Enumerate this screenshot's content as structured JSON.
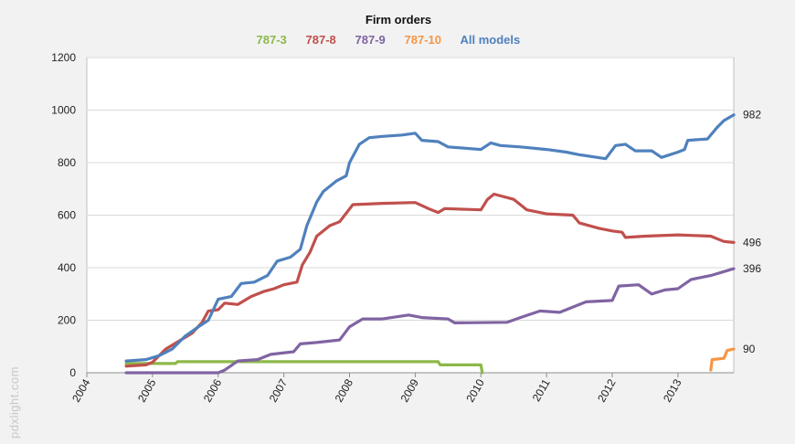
{
  "chart_data": {
    "type": "line",
    "title": "Firm orders",
    "watermark": "pdxlight.com",
    "xlabel": "",
    "ylabel": "",
    "xlim": [
      2004,
      2013.85
    ],
    "ylim": [
      0,
      1200
    ],
    "y_ticks": [
      0,
      200,
      400,
      600,
      800,
      1000,
      1200
    ],
    "x_ticks": [
      2004,
      2005,
      2006,
      2007,
      2008,
      2009,
      2010,
      2011,
      2012,
      2013
    ],
    "grid": true,
    "legend_position": "top",
    "series": [
      {
        "name": "787-3",
        "color": "#8db84a",
        "points": [
          [
            2004.6,
            35
          ],
          [
            2005.35,
            35
          ],
          [
            2005.38,
            42
          ],
          [
            2009.35,
            42
          ],
          [
            2009.38,
            30
          ],
          [
            2010.0,
            30
          ],
          [
            2010.02,
            0
          ]
        ]
      },
      {
        "name": "787-8",
        "color": "#c0504d",
        "points": [
          [
            2004.6,
            25
          ],
          [
            2004.9,
            30
          ],
          [
            2005.0,
            40
          ],
          [
            2005.2,
            90
          ],
          [
            2005.4,
            120
          ],
          [
            2005.6,
            150
          ],
          [
            2005.75,
            190
          ],
          [
            2005.85,
            235
          ],
          [
            2006.0,
            240
          ],
          [
            2006.1,
            265
          ],
          [
            2006.3,
            260
          ],
          [
            2006.5,
            290
          ],
          [
            2006.7,
            310
          ],
          [
            2006.85,
            320
          ],
          [
            2007.0,
            335
          ],
          [
            2007.2,
            345
          ],
          [
            2007.28,
            410
          ],
          [
            2007.4,
            460
          ],
          [
            2007.5,
            520
          ],
          [
            2007.7,
            560
          ],
          [
            2007.85,
            575
          ],
          [
            2008.05,
            640
          ],
          [
            2008.5,
            645
          ],
          [
            2009.0,
            648
          ],
          [
            2009.2,
            625
          ],
          [
            2009.35,
            610
          ],
          [
            2009.45,
            625
          ],
          [
            2010.0,
            620
          ],
          [
            2010.1,
            660
          ],
          [
            2010.2,
            680
          ],
          [
            2010.5,
            660
          ],
          [
            2010.7,
            620
          ],
          [
            2011.0,
            605
          ],
          [
            2011.4,
            600
          ],
          [
            2011.5,
            570
          ],
          [
            2011.8,
            550
          ],
          [
            2012.0,
            540
          ],
          [
            2012.15,
            535
          ],
          [
            2012.2,
            515
          ],
          [
            2012.5,
            520
          ],
          [
            2013.0,
            525
          ],
          [
            2013.5,
            520
          ],
          [
            2013.7,
            500
          ],
          [
            2013.85,
            496
          ]
        ]
      },
      {
        "name": "787-9",
        "color": "#8064a2",
        "points": [
          [
            2004.6,
            0
          ],
          [
            2006.0,
            0
          ],
          [
            2006.1,
            10
          ],
          [
            2006.3,
            45
          ],
          [
            2006.6,
            50
          ],
          [
            2006.8,
            70
          ],
          [
            2007.15,
            80
          ],
          [
            2007.25,
            110
          ],
          [
            2007.5,
            115
          ],
          [
            2007.85,
            125
          ],
          [
            2008.0,
            175
          ],
          [
            2008.2,
            205
          ],
          [
            2008.5,
            205
          ],
          [
            2008.9,
            220
          ],
          [
            2009.1,
            210
          ],
          [
            2009.5,
            205
          ],
          [
            2009.6,
            190
          ],
          [
            2010.4,
            192
          ],
          [
            2010.6,
            210
          ],
          [
            2010.9,
            235
          ],
          [
            2011.2,
            230
          ],
          [
            2011.6,
            270
          ],
          [
            2012.0,
            275
          ],
          [
            2012.1,
            330
          ],
          [
            2012.4,
            335
          ],
          [
            2012.6,
            300
          ],
          [
            2012.8,
            315
          ],
          [
            2013.0,
            320
          ],
          [
            2013.2,
            355
          ],
          [
            2013.5,
            370
          ],
          [
            2013.7,
            385
          ],
          [
            2013.85,
            396
          ]
        ]
      },
      {
        "name": "787-10",
        "color": "#f79646",
        "points": [
          [
            2013.5,
            10
          ],
          [
            2013.52,
            50
          ],
          [
            2013.7,
            55
          ],
          [
            2013.75,
            85
          ],
          [
            2013.85,
            90
          ]
        ]
      },
      {
        "name": "All models",
        "color": "#4f81bd",
        "points": [
          [
            2004.6,
            45
          ],
          [
            2004.9,
            50
          ],
          [
            2005.1,
            65
          ],
          [
            2005.3,
            90
          ],
          [
            2005.5,
            140
          ],
          [
            2005.7,
            175
          ],
          [
            2005.85,
            200
          ],
          [
            2006.0,
            280
          ],
          [
            2006.2,
            290
          ],
          [
            2006.35,
            340
          ],
          [
            2006.55,
            345
          ],
          [
            2006.75,
            370
          ],
          [
            2006.9,
            425
          ],
          [
            2007.1,
            440
          ],
          [
            2007.25,
            470
          ],
          [
            2007.35,
            560
          ],
          [
            2007.5,
            650
          ],
          [
            2007.6,
            690
          ],
          [
            2007.8,
            730
          ],
          [
            2007.95,
            750
          ],
          [
            2008.0,
            800
          ],
          [
            2008.15,
            870
          ],
          [
            2008.3,
            895
          ],
          [
            2008.5,
            900
          ],
          [
            2008.8,
            905
          ],
          [
            2009.0,
            912
          ],
          [
            2009.1,
            885
          ],
          [
            2009.35,
            880
          ],
          [
            2009.5,
            860
          ],
          [
            2010.0,
            850
          ],
          [
            2010.15,
            875
          ],
          [
            2010.3,
            865
          ],
          [
            2010.6,
            860
          ],
          [
            2011.0,
            850
          ],
          [
            2011.3,
            840
          ],
          [
            2011.5,
            830
          ],
          [
            2011.9,
            815
          ],
          [
            2012.05,
            865
          ],
          [
            2012.2,
            870
          ],
          [
            2012.35,
            845
          ],
          [
            2012.6,
            845
          ],
          [
            2012.75,
            820
          ],
          [
            2013.0,
            840
          ],
          [
            2013.1,
            850
          ],
          [
            2013.15,
            885
          ],
          [
            2013.45,
            890
          ],
          [
            2013.6,
            935
          ],
          [
            2013.7,
            960
          ],
          [
            2013.85,
            982
          ]
        ]
      }
    ],
    "end_labels": [
      {
        "series": "All models",
        "text": "982",
        "value": 982
      },
      {
        "series": "787-8",
        "text": "496",
        "value": 496
      },
      {
        "series": "787-9",
        "text": "396",
        "value": 396
      },
      {
        "series": "787-10",
        "text": "90",
        "value": 90
      }
    ]
  }
}
